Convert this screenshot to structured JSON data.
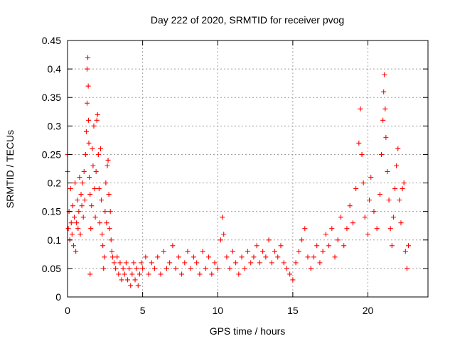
{
  "chart_data": {
    "type": "scatter",
    "title": "Day 222 of 2020, SRMTID for receiver pvog",
    "xlabel": "GPS time / hours",
    "ylabel": "SRMTID / TECUs",
    "xlim": [
      0,
      24
    ],
    "ylim": [
      0,
      0.45
    ],
    "x_ticks": [
      0,
      5,
      10,
      15,
      20
    ],
    "x_tick_labels": [
      "0",
      "5",
      "10",
      "15",
      "20"
    ],
    "y_ticks": [
      0,
      0.05,
      0.1,
      0.15,
      0.2,
      0.25,
      0.3,
      0.35,
      0.4,
      0.45
    ],
    "y_tick_labels": [
      "0",
      "0.05",
      "0.1",
      "0.15",
      "0.2",
      "0.25",
      "0.3",
      "0.35",
      "0.4",
      "0.45"
    ],
    "grid": true,
    "marker": "+",
    "marker_color": "#ff0000",
    "series": [
      {
        "name": "pvog",
        "points": [
          [
            0.0,
            0.22
          ],
          [
            0.0,
            0.25
          ],
          [
            0.05,
            0.12
          ],
          [
            0.1,
            0.15
          ],
          [
            0.15,
            0.1
          ],
          [
            0.2,
            0.19
          ],
          [
            0.25,
            0.13
          ],
          [
            0.3,
            0.11
          ],
          [
            0.35,
            0.16
          ],
          [
            0.4,
            0.09
          ],
          [
            0.45,
            0.14
          ],
          [
            0.5,
            0.2
          ],
          [
            0.55,
            0.08
          ],
          [
            0.6,
            0.13
          ],
          [
            0.65,
            0.17
          ],
          [
            0.7,
            0.12
          ],
          [
            0.75,
            0.15
          ],
          [
            0.8,
            0.21
          ],
          [
            0.85,
            0.11
          ],
          [
            0.9,
            0.18
          ],
          [
            0.95,
            0.16
          ],
          [
            1.0,
            0.2
          ],
          [
            1.05,
            0.14
          ],
          [
            1.1,
            0.22
          ],
          [
            1.15,
            0.17
          ],
          [
            1.2,
            0.25
          ],
          [
            1.25,
            0.29
          ],
          [
            1.3,
            0.34
          ],
          [
            1.3,
            0.4
          ],
          [
            1.35,
            0.42
          ],
          [
            1.38,
            0.37
          ],
          [
            1.4,
            0.31
          ],
          [
            1.42,
            0.27
          ],
          [
            1.45,
            0.21
          ],
          [
            1.5,
            0.18
          ],
          [
            1.5,
            0.04
          ],
          [
            1.55,
            0.12
          ],
          [
            1.6,
            0.16
          ],
          [
            1.65,
            0.26
          ],
          [
            1.7,
            0.23
          ],
          [
            1.75,
            0.3
          ],
          [
            1.8,
            0.19
          ],
          [
            1.85,
            0.14
          ],
          [
            1.9,
            0.22
          ],
          [
            1.95,
            0.31
          ],
          [
            2.0,
            0.32
          ],
          [
            2.05,
            0.25
          ],
          [
            2.1,
            0.19
          ],
          [
            2.15,
            0.13
          ],
          [
            2.2,
            0.26
          ],
          [
            2.25,
            0.17
          ],
          [
            2.3,
            0.11
          ],
          [
            2.35,
            0.09
          ],
          [
            2.4,
            0.05
          ],
          [
            2.45,
            0.07
          ],
          [
            2.5,
            0.15
          ],
          [
            2.55,
            0.2
          ],
          [
            2.6,
            0.13
          ],
          [
            2.65,
            0.23
          ],
          [
            2.7,
            0.24
          ],
          [
            2.75,
            0.18
          ],
          [
            2.8,
            0.12
          ],
          [
            2.85,
            0.15
          ],
          [
            2.9,
            0.1
          ],
          [
            2.95,
            0.08
          ],
          [
            3.0,
            0.07
          ],
          [
            3.1,
            0.06
          ],
          [
            3.2,
            0.05
          ],
          [
            3.3,
            0.07
          ],
          [
            3.4,
            0.04
          ],
          [
            3.5,
            0.06
          ],
          [
            3.6,
            0.03
          ],
          [
            3.7,
            0.05
          ],
          [
            3.8,
            0.04
          ],
          [
            3.9,
            0.06
          ],
          [
            4.0,
            0.03
          ],
          [
            4.1,
            0.05
          ],
          [
            4.2,
            0.02
          ],
          [
            4.3,
            0.04
          ],
          [
            4.4,
            0.06
          ],
          [
            4.5,
            0.03
          ],
          [
            4.6,
            0.05
          ],
          [
            4.7,
            0.02
          ],
          [
            4.8,
            0.04
          ],
          [
            4.9,
            0.06
          ],
          [
            5.0,
            0.05
          ],
          [
            5.2,
            0.07
          ],
          [
            5.4,
            0.04
          ],
          [
            5.6,
            0.06
          ],
          [
            5.8,
            0.05
          ],
          [
            6.0,
            0.07
          ],
          [
            6.2,
            0.04
          ],
          [
            6.4,
            0.08
          ],
          [
            6.6,
            0.05
          ],
          [
            6.8,
            0.06
          ],
          [
            7.0,
            0.09
          ],
          [
            7.2,
            0.05
          ],
          [
            7.4,
            0.07
          ],
          [
            7.6,
            0.04
          ],
          [
            7.8,
            0.06
          ],
          [
            8.0,
            0.08
          ],
          [
            8.2,
            0.05
          ],
          [
            8.4,
            0.07
          ],
          [
            8.6,
            0.06
          ],
          [
            8.8,
            0.04
          ],
          [
            9.0,
            0.08
          ],
          [
            9.2,
            0.05
          ],
          [
            9.4,
            0.07
          ],
          [
            9.6,
            0.04
          ],
          [
            9.8,
            0.06
          ],
          [
            10.0,
            0.05
          ],
          [
            10.2,
            0.1
          ],
          [
            10.3,
            0.14
          ],
          [
            10.4,
            0.11
          ],
          [
            10.6,
            0.07
          ],
          [
            10.8,
            0.05
          ],
          [
            11.0,
            0.08
          ],
          [
            11.2,
            0.06
          ],
          [
            11.4,
            0.04
          ],
          [
            11.6,
            0.07
          ],
          [
            11.8,
            0.05
          ],
          [
            12.0,
            0.08
          ],
          [
            12.2,
            0.06
          ],
          [
            12.4,
            0.07
          ],
          [
            12.6,
            0.09
          ],
          [
            12.8,
            0.06
          ],
          [
            13.0,
            0.08
          ],
          [
            13.2,
            0.07
          ],
          [
            13.4,
            0.1
          ],
          [
            13.6,
            0.06
          ],
          [
            13.8,
            0.08
          ],
          [
            14.0,
            0.07
          ],
          [
            14.2,
            0.09
          ],
          [
            14.4,
            0.06
          ],
          [
            14.6,
            0.05
          ],
          [
            14.8,
            0.04
          ],
          [
            15.0,
            0.03
          ],
          [
            15.2,
            0.06
          ],
          [
            15.4,
            0.08
          ],
          [
            15.6,
            0.1
          ],
          [
            15.8,
            0.12
          ],
          [
            16.0,
            0.07
          ],
          [
            16.2,
            0.05
          ],
          [
            16.4,
            0.07
          ],
          [
            16.6,
            0.09
          ],
          [
            16.8,
            0.06
          ],
          [
            17.0,
            0.08
          ],
          [
            17.2,
            0.11
          ],
          [
            17.4,
            0.09
          ],
          [
            17.6,
            0.12
          ],
          [
            17.8,
            0.07
          ],
          [
            18.0,
            0.1
          ],
          [
            18.2,
            0.14
          ],
          [
            18.4,
            0.09
          ],
          [
            18.6,
            0.12
          ],
          [
            18.8,
            0.16
          ],
          [
            19.0,
            0.13
          ],
          [
            19.2,
            0.19
          ],
          [
            19.4,
            0.27
          ],
          [
            19.5,
            0.33
          ],
          [
            19.6,
            0.25
          ],
          [
            19.7,
            0.2
          ],
          [
            19.8,
            0.14
          ],
          [
            20.0,
            0.11
          ],
          [
            20.1,
            0.17
          ],
          [
            20.2,
            0.21
          ],
          [
            20.4,
            0.15
          ],
          [
            20.6,
            0.12
          ],
          [
            20.8,
            0.18
          ],
          [
            20.9,
            0.25
          ],
          [
            21.0,
            0.31
          ],
          [
            21.05,
            0.36
          ],
          [
            21.1,
            0.39
          ],
          [
            21.15,
            0.33
          ],
          [
            21.2,
            0.28
          ],
          [
            21.3,
            0.22
          ],
          [
            21.4,
            0.17
          ],
          [
            21.5,
            0.12
          ],
          [
            21.6,
            0.09
          ],
          [
            21.7,
            0.14
          ],
          [
            21.8,
            0.19
          ],
          [
            21.9,
            0.23
          ],
          [
            22.0,
            0.26
          ],
          [
            22.1,
            0.17
          ],
          [
            22.2,
            0.13
          ],
          [
            22.3,
            0.19
          ],
          [
            22.4,
            0.2
          ],
          [
            22.5,
            0.08
          ],
          [
            22.6,
            0.05
          ],
          [
            22.7,
            0.09
          ]
        ]
      }
    ]
  }
}
